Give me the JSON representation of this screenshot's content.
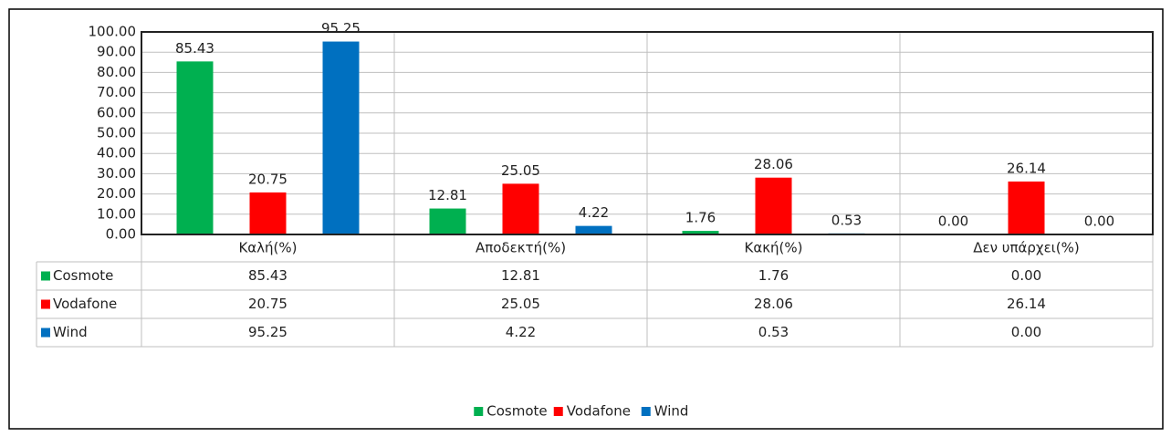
{
  "chart_data": {
    "type": "bar",
    "categories": [
      "Καλή(%)",
      "Αποδεκτή(%)",
      "Κακή(%)",
      "Δεν υπάρχει(%)"
    ],
    "series": [
      {
        "name": "Cosmote",
        "color": "#00b050",
        "values": [
          85.43,
          12.81,
          1.76,
          0
        ],
        "value_labels": [
          "85.43",
          "12.81",
          "1.76",
          "0.00"
        ]
      },
      {
        "name": "Vodafone",
        "color": "#ff0000",
        "values": [
          20.75,
          25.05,
          28.06,
          26.14
        ],
        "value_labels": [
          "20.75",
          "25.05",
          "28.06",
          "26.14"
        ]
      },
      {
        "name": "Wind",
        "color": "#0070c0",
        "values": [
          95.25,
          4.22,
          0.53,
          0
        ],
        "value_labels": [
          "95.25",
          "4.22",
          "0.53",
          "0.00"
        ]
      }
    ],
    "ylim": [
      0,
      100
    ],
    "yticks": [
      {
        "value": 0,
        "label": "0.00"
      },
      {
        "value": 10,
        "label": "10.00"
      },
      {
        "value": 20,
        "label": "20.00"
      },
      {
        "value": 30,
        "label": "30.00"
      },
      {
        "value": 40,
        "label": "40.00"
      },
      {
        "value": 50,
        "label": "50.00"
      },
      {
        "value": 60,
        "label": "60.00"
      },
      {
        "value": 70,
        "label": "70.00"
      },
      {
        "value": 80,
        "label": "80.00"
      },
      {
        "value": 90,
        "label": "90.00"
      },
      {
        "value": 100,
        "label": "100.00"
      }
    ],
    "grid": true,
    "legend": "bottom",
    "data_table": true
  }
}
